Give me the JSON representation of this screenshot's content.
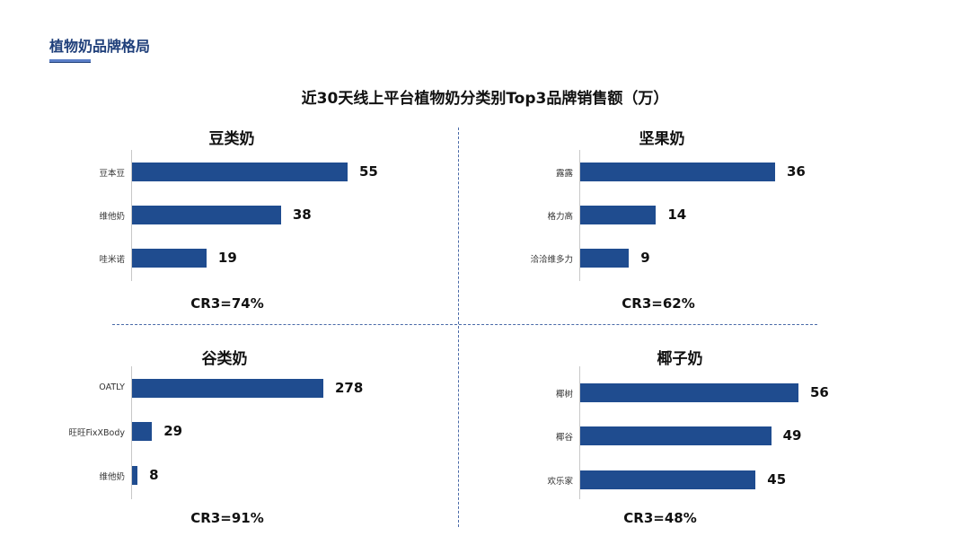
{
  "header": {
    "page_title": "植物奶品牌格局",
    "chart_title": "近30天线上平台植物奶分类别Top3品牌销售额（万）"
  },
  "colors": {
    "bar": "#1f4c8f",
    "title": "#1f3f7a",
    "divider": "#4a6aa8"
  },
  "chart_data": [
    {
      "type": "bar",
      "orientation": "horizontal",
      "title": "豆类奶",
      "categories": [
        "豆本豆",
        "维他奶",
        "哇米诺"
      ],
      "values": [
        55,
        38,
        19
      ],
      "annotation": "CR3=74%"
    },
    {
      "type": "bar",
      "orientation": "horizontal",
      "title": "坚果奶",
      "categories": [
        "露露",
        "格力高",
        "洽洽维多力"
      ],
      "values": [
        36,
        14,
        9
      ],
      "annotation": "CR3=62%"
    },
    {
      "type": "bar",
      "orientation": "horizontal",
      "title": "谷类奶",
      "categories": [
        "OATLY",
        "旺旺FixXBody",
        "维他奶"
      ],
      "values": [
        278,
        29,
        8
      ],
      "annotation": "CR3=91%"
    },
    {
      "type": "bar",
      "orientation": "horizontal",
      "title": "椰子奶",
      "categories": [
        "椰树",
        "椰谷",
        "欢乐家"
      ],
      "values": [
        56,
        49,
        45
      ],
      "annotation": "CR3=48%"
    }
  ]
}
